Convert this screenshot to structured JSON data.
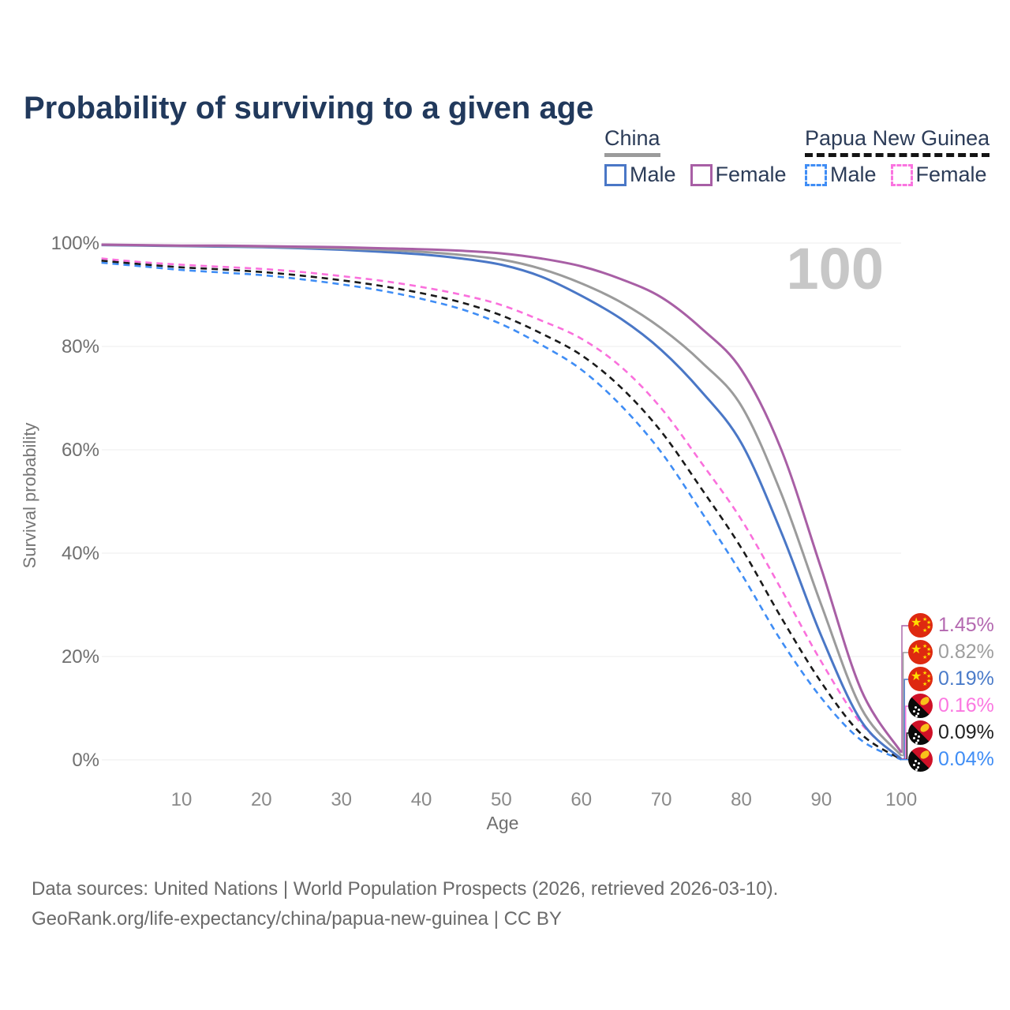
{
  "page": {
    "title": "Probability of surviving to a given age"
  },
  "legend": {
    "groups": [
      {
        "label": "China",
        "style": "solid-gray-underline",
        "items": [
          {
            "label": "Male"
          },
          {
            "label": "Female"
          }
        ]
      },
      {
        "label": "Papua New Guinea",
        "style": "dashed-black-underline",
        "items": [
          {
            "label": "Male"
          },
          {
            "label": "Female"
          }
        ]
      }
    ]
  },
  "footer": {
    "line1": "Data sources: United Nations | World Population Prospects (2026, retrieved 2026-03-10).",
    "line2": "GeoRank.org/life-expectancy/china/papua-new-guinea | CC BY"
  },
  "chart_data": {
    "type": "line",
    "title": "Probability of surviving to a given age",
    "xlabel": "Age",
    "ylabel": "Survival probability",
    "xlim": [
      0,
      100
    ],
    "ylim": [
      0,
      100
    ],
    "grid": "horizontal",
    "legend_position": "top-right",
    "watermark": "100",
    "x_ticks": [
      10,
      20,
      30,
      40,
      50,
      60,
      70,
      80,
      90,
      100
    ],
    "y_ticks": [
      {
        "value": 0,
        "label": "0%"
      },
      {
        "value": 20,
        "label": "20%"
      },
      {
        "value": 40,
        "label": "40%"
      },
      {
        "value": 60,
        "label": "60%"
      },
      {
        "value": 80,
        "label": "80%"
      },
      {
        "value": 100,
        "label": "100%"
      }
    ],
    "x": [
      0,
      5,
      10,
      15,
      20,
      25,
      30,
      35,
      40,
      45,
      50,
      55,
      60,
      65,
      70,
      75,
      80,
      85,
      90,
      95,
      100
    ],
    "series": [
      {
        "id": "china-female",
        "name": "China — Female",
        "country": "China",
        "flag": "cn",
        "color": "#a85fa5",
        "label_color": "#b468b0",
        "dash": false,
        "end_label": "1.45%",
        "values": [
          99.7,
          99.6,
          99.5,
          99.5,
          99.4,
          99.3,
          99.2,
          99.0,
          98.8,
          98.5,
          98.0,
          97.0,
          95.5,
          93.0,
          89.5,
          83.5,
          75.5,
          60.0,
          37.0,
          13.5,
          1.45
        ]
      },
      {
        "id": "china-both",
        "name": "China — Both sexes",
        "country": "China",
        "flag": "cn",
        "color": "#9b9b9b",
        "label_color": "#9e9e9e",
        "dash": false,
        "end_label": "0.82%",
        "values": [
          99.65,
          99.55,
          99.45,
          99.4,
          99.3,
          99.15,
          98.95,
          98.7,
          98.3,
          97.7,
          96.8,
          95.0,
          92.2,
          88.5,
          83.5,
          77.0,
          68.5,
          51.5,
          30.0,
          10.0,
          0.82
        ]
      },
      {
        "id": "china-male",
        "name": "China — Male",
        "country": "China",
        "flag": "cn",
        "color": "#4a77c6",
        "label_color": "#4a7bc9",
        "dash": false,
        "end_label": "0.19%",
        "values": [
          99.6,
          99.5,
          99.4,
          99.3,
          99.2,
          99.0,
          98.7,
          98.3,
          97.8,
          97.0,
          95.8,
          93.5,
          89.8,
          85.3,
          79.3,
          71.3,
          61.3,
          44.0,
          24.0,
          7.5,
          0.19
        ]
      },
      {
        "id": "png-female",
        "name": "Papua New Guinea — Female",
        "country": "Papua New Guinea",
        "flag": "pg",
        "color": "#fa70dc",
        "label_color": "#fb78e1",
        "dash": true,
        "end_label": "0.16%",
        "values": [
          97.0,
          96.3,
          95.8,
          95.4,
          95.0,
          94.4,
          93.6,
          92.7,
          91.5,
          90.0,
          88.0,
          85.0,
          81.5,
          76.0,
          68.0,
          57.5,
          46.5,
          33.0,
          19.0,
          7.0,
          0.16
        ]
      },
      {
        "id": "png-both",
        "name": "Papua New Guinea — Both sexes",
        "country": "Papua New Guinea",
        "flag": "pg",
        "color": "#1a1a1a",
        "label_color": "#1f1f1f",
        "dash": true,
        "end_label": "0.09%",
        "values": [
          96.6,
          95.9,
          95.3,
          94.9,
          94.4,
          93.7,
          92.8,
          91.7,
          90.3,
          88.5,
          86.0,
          82.5,
          78.3,
          72.0,
          63.5,
          52.5,
          41.0,
          27.5,
          15.0,
          5.0,
          0.09
        ]
      },
      {
        "id": "png-male",
        "name": "Papua New Guinea — Male",
        "country": "Papua New Guinea",
        "flag": "pg",
        "color": "#3f8df5",
        "label_color": "#3f8df5",
        "dash": true,
        "end_label": "0.04%",
        "values": [
          96.2,
          95.5,
          94.8,
          94.3,
          93.8,
          93.0,
          92.0,
          90.8,
          89.2,
          87.2,
          84.3,
          80.3,
          75.5,
          68.5,
          59.5,
          48.0,
          36.0,
          23.0,
          12.0,
          3.8,
          0.04
        ]
      }
    ]
  }
}
